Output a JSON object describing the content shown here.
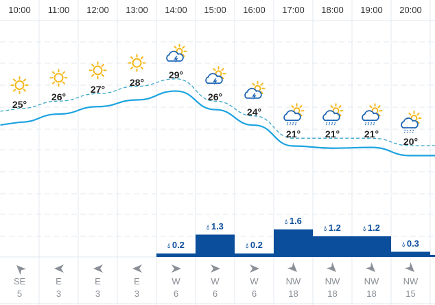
{
  "hours": [
    {
      "time": "10:00",
      "icon": "sun-icon",
      "temp": "25°",
      "temp_value": 25,
      "line_value": 22.6,
      "precip": null,
      "wind_dir": "SE",
      "wind_speed": "5"
    },
    {
      "time": "11:00",
      "icon": "sun-icon",
      "temp": "26°",
      "temp_value": 26,
      "line_value": 23.7,
      "precip": null,
      "wind_dir": "E",
      "wind_speed": "3"
    },
    {
      "time": "12:00",
      "icon": "sun-icon",
      "temp": "27°",
      "temp_value": 27,
      "line_value": 24.7,
      "precip": null,
      "wind_dir": "E",
      "wind_speed": "3"
    },
    {
      "time": "13:00",
      "icon": "sun-icon",
      "temp": "28°",
      "temp_value": 28,
      "line_value": 25.6,
      "precip": null,
      "wind_dir": "E",
      "wind_speed": "3"
    },
    {
      "time": "14:00",
      "icon": "thunderstorm-sun-icon",
      "temp": "29°",
      "temp_value": 29,
      "line_value": 26.8,
      "precip": "0.2",
      "precip_value": 0.2,
      "wind_dir": "W",
      "wind_speed": "6"
    },
    {
      "time": "15:00",
      "icon": "thunderstorm-sun-icon",
      "temp": "26°",
      "temp_value": 26,
      "line_value": 24.3,
      "precip": "1.3",
      "precip_value": 1.3,
      "wind_dir": "W",
      "wind_speed": "6"
    },
    {
      "time": "16:00",
      "icon": "thunderstorm-sun-icon",
      "temp": "24°",
      "temp_value": 24,
      "line_value": 22.2,
      "precip": "0.2",
      "precip_value": 0.2,
      "wind_dir": "W",
      "wind_speed": "6"
    },
    {
      "time": "17:00",
      "icon": "rain-sun-icon",
      "temp": "21°",
      "temp_value": 21,
      "line_value": 19.4,
      "precip": "1.6",
      "precip_value": 1.6,
      "wind_dir": "NW",
      "wind_speed": "18"
    },
    {
      "time": "18:00",
      "icon": "rain-sun-icon",
      "temp": "21°",
      "temp_value": 21,
      "line_value": 19.1,
      "precip": "1.2",
      "precip_value": 1.2,
      "wind_dir": "NW",
      "wind_speed": "18"
    },
    {
      "time": "19:00",
      "icon": "rain-sun-icon",
      "temp": "21°",
      "temp_value": 21,
      "line_value": 19.2,
      "precip": "1.2",
      "precip_value": 1.2,
      "wind_dir": "NW",
      "wind_speed": "18"
    },
    {
      "time": "20:00",
      "icon": "rain-sun-icon",
      "temp": "20°",
      "temp_value": 20,
      "line_value": 18.1,
      "precip": "0.3",
      "precip_value": 0.3,
      "wind_dir": "NW",
      "wind_speed": "15"
    }
  ],
  "colors": {
    "line": "#1ba3e0",
    "dashed": "#3aa6c8",
    "bar": "#0b4f9c",
    "sun": "#f5b81c",
    "cloud": "#1e66b5",
    "grid": "#e3e8ef",
    "wind": "#8a8f96"
  }
}
